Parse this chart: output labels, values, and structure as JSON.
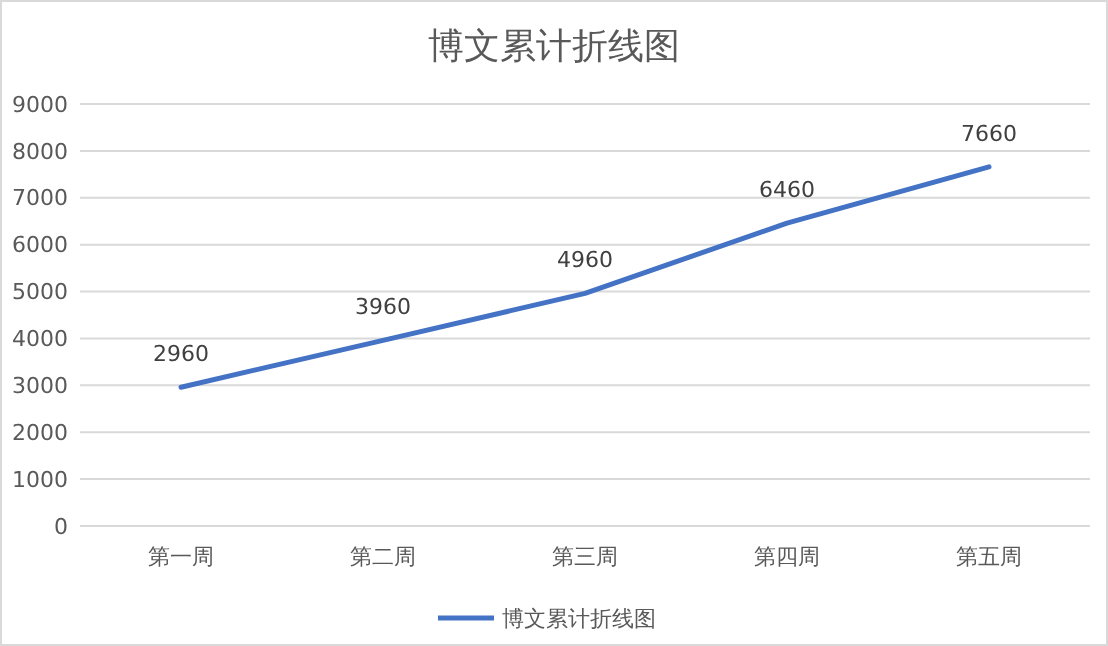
{
  "chart_data": {
    "type": "line",
    "title": "博文累计折线图",
    "categories": [
      "第一周",
      "第二周",
      "第三周",
      "第四周",
      "第五周"
    ],
    "series": [
      {
        "name": "博文累计折线图",
        "color": "#4472c4",
        "values": [
          2960,
          3960,
          4960,
          6460,
          7660
        ]
      }
    ],
    "ylim": [
      0,
      9000
    ],
    "yticks": [
      0,
      1000,
      2000,
      3000,
      4000,
      5000,
      6000,
      7000,
      8000,
      9000
    ],
    "grid": "y",
    "legend": "bottom",
    "data_labels": true,
    "marker": "none",
    "line_style": "solid"
  }
}
